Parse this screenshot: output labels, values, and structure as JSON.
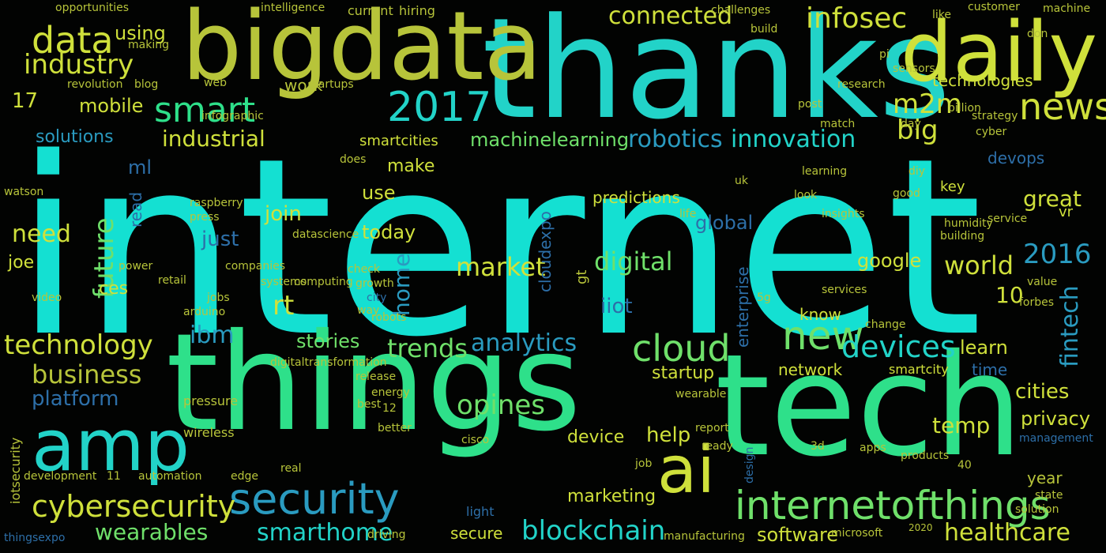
{
  "palette": {
    "teal": "#22d3c8",
    "cyan": "#14e0d2",
    "green": "#2ee08a",
    "lime": "#b9dc3a",
    "yellow": "#cfe03b",
    "olive": "#b7c43a",
    "blue": "#2d6fa8",
    "indigo": "#33508f",
    "sky": "#2a9bc0",
    "mint": "#6fe06a"
  },
  "words": [
    {
      "text": "internet",
      "color": "cyan"
    },
    {
      "text": "things",
      "color": "green"
    },
    {
      "text": "tech",
      "color": "green"
    },
    {
      "text": "thanks",
      "color": "teal"
    },
    {
      "text": "bigdata",
      "color": "olive"
    },
    {
      "text": "daily",
      "color": "yellow"
    },
    {
      "text": "amp",
      "color": "teal"
    },
    {
      "text": "security",
      "color": "sky"
    },
    {
      "text": "ai",
      "color": "yellow"
    },
    {
      "text": "internetofthings",
      "color": "mint"
    },
    {
      "text": "cybersecurity",
      "color": "yellow"
    },
    {
      "text": "cloud",
      "color": "mint"
    },
    {
      "text": "2017",
      "color": "teal"
    },
    {
      "text": "data",
      "color": "yellow"
    },
    {
      "text": "smart",
      "color": "green"
    },
    {
      "text": "news",
      "color": "yellow"
    },
    {
      "text": "new",
      "color": "mint"
    },
    {
      "text": "devices",
      "color": "teal"
    },
    {
      "text": "technology",
      "color": "yellow"
    },
    {
      "text": "business",
      "color": "olive"
    },
    {
      "text": "wearables",
      "color": "mint"
    },
    {
      "text": "smarthome",
      "color": "teal"
    },
    {
      "text": "blockchain",
      "color": "teal"
    },
    {
      "text": "analytics",
      "color": "sky"
    },
    {
      "text": "trends",
      "color": "mint"
    },
    {
      "text": "opines",
      "color": "mint"
    },
    {
      "text": "fintech",
      "color": "sky"
    },
    {
      "text": "industry",
      "color": "yellow"
    },
    {
      "text": "industrial",
      "color": "yellow"
    },
    {
      "text": "infosec",
      "color": "yellow"
    },
    {
      "text": "connected",
      "color": "yellow"
    },
    {
      "text": "robotics",
      "color": "sky"
    },
    {
      "text": "innovation",
      "color": "teal"
    },
    {
      "text": "machinelearning",
      "color": "mint"
    },
    {
      "text": "m2m",
      "color": "yellow"
    },
    {
      "text": "big",
      "color": "yellow"
    },
    {
      "text": "mobile",
      "color": "yellow"
    },
    {
      "text": "solutions",
      "color": "sky"
    },
    {
      "text": "future",
      "color": "mint"
    },
    {
      "text": "digital",
      "color": "mint"
    },
    {
      "text": "market",
      "color": "yellow"
    },
    {
      "text": "home",
      "color": "sky"
    },
    {
      "text": "world",
      "color": "yellow"
    },
    {
      "text": "2016",
      "color": "sky"
    },
    {
      "text": "ibm",
      "color": "sky"
    },
    {
      "text": "platform",
      "color": "blue"
    },
    {
      "text": "need",
      "color": "yellow"
    },
    {
      "text": "join",
      "color": "yellow"
    },
    {
      "text": "today",
      "color": "yellow"
    },
    {
      "text": "stories",
      "color": "mint"
    },
    {
      "text": "help",
      "color": "yellow"
    },
    {
      "text": "temp",
      "color": "yellow"
    },
    {
      "text": "great",
      "color": "yellow"
    },
    {
      "text": "google",
      "color": "yellow"
    },
    {
      "text": "learn",
      "color": "yellow"
    },
    {
      "text": "rt",
      "color": "yellow"
    },
    {
      "text": "10",
      "color": "yellow"
    },
    {
      "text": "iiot",
      "color": "blue"
    },
    {
      "text": "startup",
      "color": "yellow"
    },
    {
      "text": "network",
      "color": "yellow"
    },
    {
      "text": "cities",
      "color": "yellow"
    },
    {
      "text": "privacy",
      "color": "yellow"
    },
    {
      "text": "healthcare",
      "color": "yellow"
    },
    {
      "text": "software",
      "color": "yellow"
    },
    {
      "text": "marketing",
      "color": "yellow"
    },
    {
      "text": "device",
      "color": "yellow"
    },
    {
      "text": "make",
      "color": "yellow"
    },
    {
      "text": "use",
      "color": "yellow"
    },
    {
      "text": "just",
      "color": "blue"
    },
    {
      "text": "global",
      "color": "blue"
    },
    {
      "text": "using",
      "color": "yellow"
    },
    {
      "text": "ml",
      "color": "blue"
    },
    {
      "text": "17",
      "color": "yellow"
    },
    {
      "text": "ces",
      "color": "yellow"
    },
    {
      "text": "joe",
      "color": "yellow"
    },
    {
      "text": "read",
      "color": "blue"
    },
    {
      "text": "work",
      "color": "olive"
    },
    {
      "text": "smartcities",
      "color": "yellow"
    },
    {
      "text": "technologies",
      "color": "yellow"
    },
    {
      "text": "predictions",
      "color": "yellow"
    },
    {
      "text": "cloudexpo",
      "color": "blue"
    },
    {
      "text": "enterprise",
      "color": "blue"
    },
    {
      "text": "know",
      "color": "yellow"
    },
    {
      "text": "smartcity",
      "color": "yellow"
    },
    {
      "text": "time",
      "color": "blue"
    },
    {
      "text": "year",
      "color": "olive"
    },
    {
      "text": "secure",
      "color": "yellow"
    },
    {
      "text": "devops",
      "color": "blue"
    },
    {
      "text": "key",
      "color": "yellow"
    },
    {
      "text": "vr",
      "color": "yellow"
    },
    {
      "text": "datascience",
      "color": "olive"
    },
    {
      "text": "iotsecurity",
      "color": "olive"
    },
    {
      "text": "digitaltransformation",
      "color": "olive"
    },
    {
      "text": "raspberry",
      "color": "olive"
    },
    {
      "text": "arduino",
      "color": "olive"
    },
    {
      "text": "watson",
      "color": "olive"
    },
    {
      "text": "infographic",
      "color": "olive"
    },
    {
      "text": "blog",
      "color": "olive"
    },
    {
      "text": "startups",
      "color": "olive"
    },
    {
      "text": "revolution",
      "color": "olive"
    },
    {
      "text": "intelligence",
      "color": "olive"
    },
    {
      "text": "opportunities",
      "color": "olive"
    },
    {
      "text": "current",
      "color": "olive"
    },
    {
      "text": "hiring",
      "color": "olive"
    },
    {
      "text": "challenges",
      "color": "olive"
    },
    {
      "text": "customer",
      "color": "olive"
    },
    {
      "text": "machine",
      "color": "olive"
    },
    {
      "text": "like",
      "color": "olive"
    },
    {
      "text": "build",
      "color": "olive"
    },
    {
      "text": "post",
      "color": "olive"
    },
    {
      "text": "research",
      "color": "olive"
    },
    {
      "text": "billion",
      "color": "olive"
    },
    {
      "text": "strategy",
      "color": "olive"
    },
    {
      "text": "cyber",
      "color": "olive"
    },
    {
      "text": "sensors",
      "color": "olive"
    },
    {
      "text": "pi",
      "color": "olive"
    },
    {
      "text": "don",
      "color": "olive"
    },
    {
      "text": "day",
      "color": "olive"
    },
    {
      "text": "match",
      "color": "olive"
    },
    {
      "text": "web",
      "color": "olive"
    },
    {
      "text": "learning",
      "color": "olive"
    },
    {
      "text": "diy",
      "color": "olive"
    },
    {
      "text": "good",
      "color": "olive"
    },
    {
      "text": "look",
      "color": "olive"
    },
    {
      "text": "video",
      "color": "olive"
    },
    {
      "text": "press",
      "color": "olive"
    },
    {
      "text": "computing",
      "color": "olive"
    },
    {
      "text": "robots",
      "color": "olive"
    },
    {
      "text": "insights",
      "color": "olive"
    },
    {
      "text": "humidity",
      "color": "olive"
    },
    {
      "text": "service",
      "color": "olive"
    },
    {
      "text": "building",
      "color": "olive"
    },
    {
      "text": "power",
      "color": "olive"
    },
    {
      "text": "retail",
      "color": "olive"
    },
    {
      "text": "companies",
      "color": "olive"
    },
    {
      "text": "systems",
      "color": "olive"
    },
    {
      "text": "check",
      "color": "olive"
    },
    {
      "text": "growth",
      "color": "olive"
    },
    {
      "text": "jobs",
      "color": "olive"
    },
    {
      "text": "city",
      "color": "blue"
    },
    {
      "text": "way",
      "color": "olive"
    },
    {
      "text": "gt",
      "color": "olive"
    },
    {
      "text": "5g",
      "color": "olive"
    },
    {
      "text": "services",
      "color": "olive"
    },
    {
      "text": "value",
      "color": "olive"
    },
    {
      "text": "forbes",
      "color": "olive"
    },
    {
      "text": "change",
      "color": "olive"
    },
    {
      "text": "release",
      "color": "olive"
    },
    {
      "text": "energy",
      "color": "olive"
    },
    {
      "text": "wearable",
      "color": "olive"
    },
    {
      "text": "pressure",
      "color": "olive"
    },
    {
      "text": "best",
      "color": "olive"
    },
    {
      "text": "wireless",
      "color": "olive"
    },
    {
      "text": "12",
      "color": "olive"
    },
    {
      "text": "better",
      "color": "olive"
    },
    {
      "text": "cisco",
      "color": "olive"
    },
    {
      "text": "report",
      "color": "olive"
    },
    {
      "text": "ready",
      "color": "olive"
    },
    {
      "text": "3d",
      "color": "olive"
    },
    {
      "text": "apps",
      "color": "olive"
    },
    {
      "text": "products",
      "color": "olive"
    },
    {
      "text": "management",
      "color": "blue"
    },
    {
      "text": "40",
      "color": "olive"
    },
    {
      "text": "state",
      "color": "olive"
    },
    {
      "text": "solution",
      "color": "olive"
    },
    {
      "text": "automation",
      "color": "olive"
    },
    {
      "text": "edge",
      "color": "olive"
    },
    {
      "text": "real",
      "color": "olive"
    },
    {
      "text": "development",
      "color": "olive"
    },
    {
      "text": "11",
      "color": "olive"
    },
    {
      "text": "job",
      "color": "olive"
    },
    {
      "text": "design",
      "color": "blue"
    },
    {
      "text": "thingsexpo",
      "color": "blue"
    },
    {
      "text": "light",
      "color": "blue"
    },
    {
      "text": "driving",
      "color": "olive"
    },
    {
      "text": "manufacturing",
      "color": "olive"
    },
    {
      "text": "microsoft",
      "color": "olive"
    },
    {
      "text": "2020",
      "color": "olive"
    },
    {
      "text": "making",
      "color": "olive"
    },
    {
      "text": "does",
      "color": "olive"
    },
    {
      "text": "uk",
      "color": "olive"
    },
    {
      "text": "life",
      "color": "olive"
    }
  ]
}
